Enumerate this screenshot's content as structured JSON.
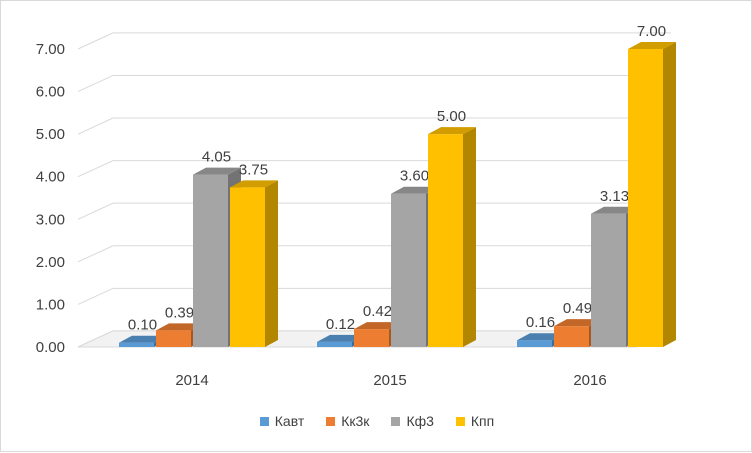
{
  "chart_data": {
    "type": "bar",
    "categories": [
      "2014",
      "2015",
      "2016"
    ],
    "series": [
      {
        "name": "Кавт",
        "values": [
          0.1,
          0.12,
          0.16
        ],
        "color": "#5b9bd5"
      },
      {
        "name": "Кк3к",
        "values": [
          0.39,
          0.42,
          0.49
        ],
        "color": "#ed7d31"
      },
      {
        "name": "Кф3",
        "values": [
          4.05,
          3.6,
          3.13
        ],
        "color": "#a5a5a5"
      },
      {
        "name": "Кпп",
        "values": [
          3.75,
          5.0,
          7.0
        ],
        "color": "#ffc000"
      }
    ],
    "data_labels": [
      [
        "0.10",
        "0.12",
        "0.16"
      ],
      [
        "0.39",
        "0.42",
        "0.49"
      ],
      [
        "4.05",
        "3.60",
        "3.13"
      ],
      [
        "3.75",
        "5.00",
        "7.00"
      ]
    ],
    "y_ticks": [
      "0.00",
      "1.00",
      "2.00",
      "3.00",
      "4.00",
      "5.00",
      "6.00",
      "7.00"
    ],
    "ylim": [
      0,
      7
    ],
    "grid": true,
    "style": "3d-clustered-column",
    "legend_position": "bottom"
  }
}
